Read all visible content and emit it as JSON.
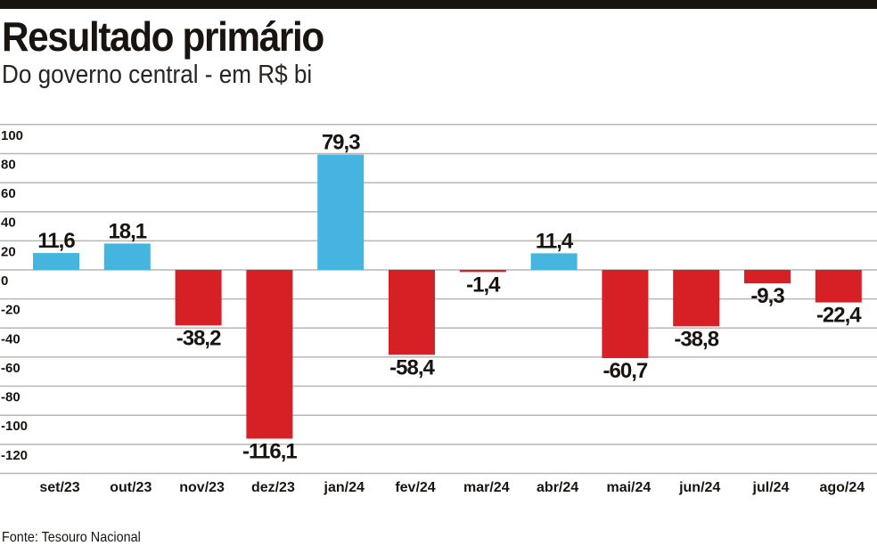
{
  "chart_data": {
    "type": "bar",
    "title": "Resultado primário",
    "subtitle": "Do governo central - em R$ bi",
    "source": "Fonte: Tesouro Nacional",
    "categories": [
      "set/23",
      "out/23",
      "nov/23",
      "dez/23",
      "jan/24",
      "fev/24",
      "mar/24",
      "abr/24",
      "mai/24",
      "jun/24",
      "jul/24",
      "ago/24"
    ],
    "values": [
      11.6,
      18.1,
      -38.2,
      -116.1,
      79.3,
      -58.4,
      -1.4,
      11.4,
      -60.7,
      -38.8,
      -9.3,
      -22.4
    ],
    "data_labels": [
      "11,6",
      "18,1",
      "-38,2",
      "-116,1",
      "79,3",
      "-58,4",
      "-1,4",
      "11,4",
      "-60,7",
      "-38,8",
      "-9,3",
      "-22,4"
    ],
    "yticks": [
      100,
      80,
      60,
      40,
      20,
      0,
      -20,
      -40,
      -60,
      -80,
      -100,
      -120
    ],
    "ylim": [
      -140,
      100
    ],
    "grid": true,
    "colors": {
      "positive": "#45b5e0",
      "negative": "#d71f26"
    }
  }
}
